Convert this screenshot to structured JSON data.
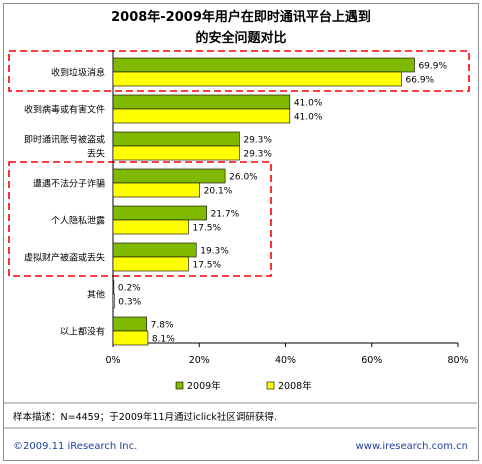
{
  "chart_data": {
    "type": "bar",
    "orientation": "horizontal",
    "title_line1": "2008年-2009年用户在即时通讯平台上遇到",
    "title_line2": "的安全问题对比",
    "categories": [
      {
        "lines": [
          "收到垃圾消息"
        ]
      },
      {
        "lines": [
          "收到病毒或有害文件"
        ]
      },
      {
        "lines": [
          "即时通讯账号被盗或",
          "丢失"
        ]
      },
      {
        "lines": [
          "遭遇不法分子诈骗"
        ]
      },
      {
        "lines": [
          "个人隐私泄露"
        ]
      },
      {
        "lines": [
          "虚拟财产被盗或丢失"
        ]
      },
      {
        "lines": [
          "其他"
        ]
      },
      {
        "lines": [
          "以上都没有"
        ]
      }
    ],
    "series": [
      {
        "name": "2009年",
        "color": "#7fba00",
        "values": [
          69.9,
          41.0,
          29.3,
          26.0,
          21.7,
          19.3,
          0.2,
          7.8
        ],
        "labels": [
          "69.9%",
          "41.0%",
          "29.3%",
          "26.0%",
          "21.7%",
          "19.3%",
          "0.2%",
          "7.8%"
        ]
      },
      {
        "name": "2008年",
        "color": "#ffff00",
        "values": [
          66.9,
          41.0,
          29.3,
          20.1,
          17.5,
          17.5,
          0.3,
          8.1
        ],
        "labels": [
          "66.9%",
          "41.0%",
          "29.3%",
          "20.1%",
          "17.5%",
          "17.5%",
          "0.3%",
          "8.1%"
        ]
      }
    ],
    "xlim": [
      0,
      80
    ],
    "xticks": [
      "0%",
      "20%",
      "40%",
      "60%",
      "80%"
    ],
    "grid": false,
    "legend_position": "bottom",
    "highlight_groups": [
      [
        0
      ],
      [
        3,
        4,
        5
      ]
    ],
    "highlight_color": "#ff0000"
  },
  "footer": {
    "sample_note": "样本描述：N=4459；于2009年11月通过iclick社区调研获得.",
    "copyright": "©2009.11 iResearch Inc.",
    "website": "www.iresearch.com.cn"
  }
}
